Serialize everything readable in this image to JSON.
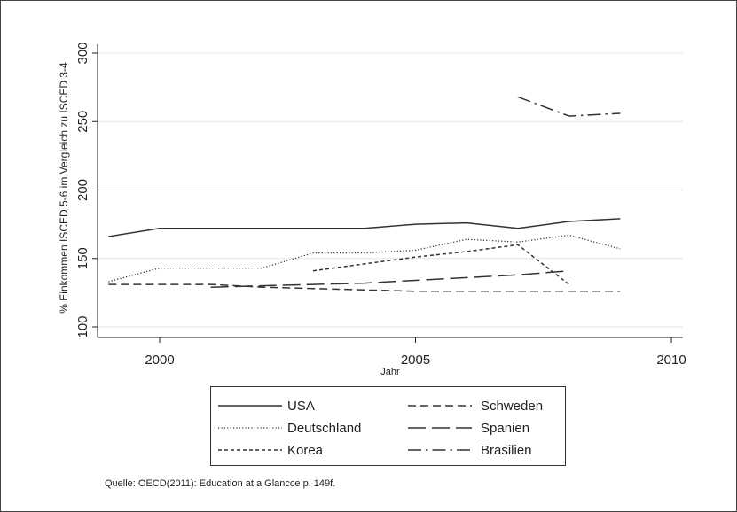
{
  "chart_data": {
    "type": "line",
    "ylabel": "% Einkommen ISCED 5-6 im Vergleich zu ISCED 3-4",
    "xlabel": "Jahr",
    "xlim": [
      1999,
      2010
    ],
    "ylim": [
      100,
      300
    ],
    "x_ticks": [
      2000,
      2005,
      2010
    ],
    "y_ticks": [
      100,
      150,
      200,
      250,
      300
    ],
    "grid": true,
    "legend_placement": "bottom",
    "series": [
      {
        "name": "USA",
        "dash": "solid",
        "points": [
          [
            1999,
            166
          ],
          [
            2000,
            172
          ],
          [
            2001,
            172
          ],
          [
            2002,
            172
          ],
          [
            2003,
            172
          ],
          [
            2004,
            172
          ],
          [
            2005,
            175
          ],
          [
            2006,
            176
          ],
          [
            2007,
            172
          ],
          [
            2008,
            177
          ],
          [
            2009,
            179
          ]
        ]
      },
      {
        "name": "Deutschland",
        "dash": "dotted",
        "points": [
          [
            1999,
            133
          ],
          [
            2000,
            143
          ],
          [
            2001,
            143
          ],
          [
            2002,
            143
          ],
          [
            2003,
            154
          ],
          [
            2004,
            154
          ],
          [
            2005,
            156
          ],
          [
            2006,
            164
          ],
          [
            2007,
            162
          ],
          [
            2008,
            167
          ],
          [
            2009,
            157
          ]
        ]
      },
      {
        "name": "Korea",
        "dash": "shortdash",
        "points": [
          [
            2003,
            141
          ],
          [
            2004,
            146
          ],
          [
            2005,
            151
          ],
          [
            2006,
            155
          ],
          [
            2007,
            160
          ],
          [
            2008,
            131
          ]
        ]
      },
      {
        "name": "Schweden",
        "dash": "dash",
        "points": [
          [
            1999,
            131
          ],
          [
            2000,
            131
          ],
          [
            2001,
            131
          ],
          [
            2002,
            129
          ],
          [
            2003,
            128
          ],
          [
            2004,
            127
          ],
          [
            2005,
            126
          ],
          [
            2006,
            126
          ],
          [
            2007,
            126
          ],
          [
            2008,
            126
          ],
          [
            2009,
            126
          ]
        ]
      },
      {
        "name": "Spanien",
        "dash": "longdash",
        "points": [
          [
            2001,
            129
          ],
          [
            2002,
            130
          ],
          [
            2003,
            131
          ],
          [
            2004,
            132
          ],
          [
            2005,
            134
          ],
          [
            2006,
            136
          ],
          [
            2007,
            138
          ],
          [
            2008,
            141
          ]
        ]
      },
      {
        "name": "Brasilien",
        "dash": "dashdot",
        "points": [
          [
            2007,
            268
          ],
          [
            2008,
            254
          ],
          [
            2009,
            256
          ]
        ]
      }
    ]
  },
  "note": "Quelle: OECD(2011): Education at a Glancce p. 149f."
}
